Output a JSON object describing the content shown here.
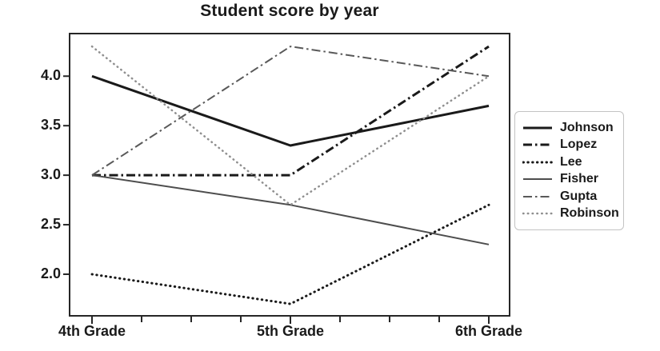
{
  "chart_data": {
    "type": "line",
    "title": "Student score by year",
    "categories": [
      "4th Grade",
      "5th Grade",
      "6th Grade"
    ],
    "series": [
      {
        "name": "Johnson",
        "values": [
          4.0,
          3.3,
          3.7
        ],
        "style": "solid",
        "color": "#1a1a1a",
        "width": 3
      },
      {
        "name": "Lopez",
        "values": [
          3.0,
          3.0,
          4.3
        ],
        "style": "dashdot",
        "color": "#1a1a1a",
        "width": 3
      },
      {
        "name": "Lee",
        "values": [
          2.0,
          1.7,
          2.7
        ],
        "style": "dotted",
        "color": "#1a1a1a",
        "width": 3
      },
      {
        "name": "Fisher",
        "values": [
          3.0,
          2.7,
          2.3
        ],
        "style": "solid",
        "color": "#4d4d4d",
        "width": 2
      },
      {
        "name": "Gupta",
        "values": [
          3.0,
          4.3,
          4.0
        ],
        "style": "dashdot",
        "color": "#595959",
        "width": 2
      },
      {
        "name": "Robinson",
        "values": [
          4.3,
          2.7,
          4.0
        ],
        "style": "dotted",
        "color": "#8f8f8f",
        "width": 2.5
      }
    ],
    "ytick_labels": [
      "4.0",
      "3.5",
      "3.0",
      "2.5",
      "2.0"
    ],
    "ytick_values": [
      4.0,
      3.5,
      3.0,
      2.5,
      2.0
    ],
    "ylim": [
      1.58,
      4.43
    ],
    "xlabel": "",
    "ylabel": "",
    "grid": false,
    "legend_position": "right",
    "axis_color": "#262626",
    "text_color": "#1a1a1a",
    "background_color": "#ffffff"
  }
}
